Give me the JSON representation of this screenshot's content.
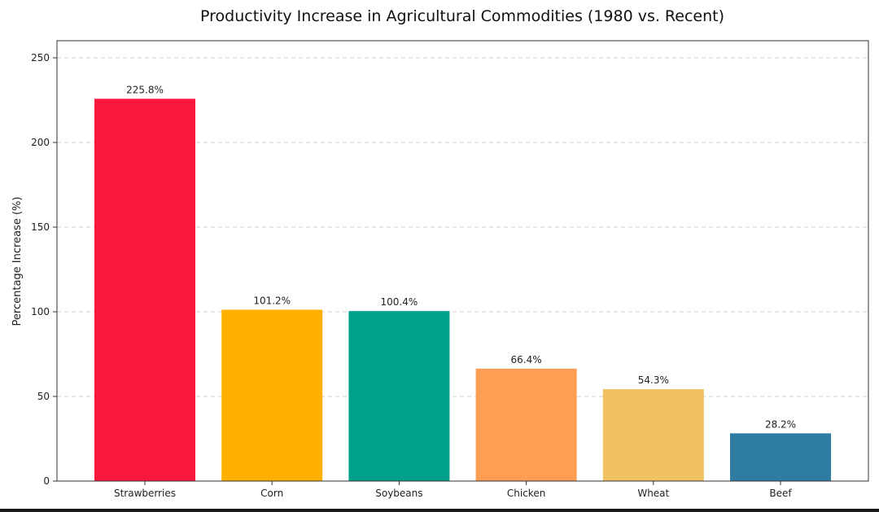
{
  "chart_data": {
    "type": "bar",
    "title": "Productivity Increase in Agricultural Commodities (1980 vs. Recent)",
    "xlabel": "",
    "ylabel": "Percentage Increase (%)",
    "categories": [
      "Strawberries",
      "Corn",
      "Soybeans",
      "Chicken",
      "Wheat",
      "Beef"
    ],
    "values": [
      225.8,
      101.2,
      100.4,
      66.4,
      54.3,
      28.2
    ],
    "value_labels": [
      "225.8%",
      "101.2%",
      "100.4%",
      "66.4%",
      "54.3%",
      "28.2%"
    ],
    "colors": [
      "#fb183d",
      "#ffb000",
      "#00a08a",
      "#fe9d54",
      "#f0c262",
      "#2f7ca3"
    ],
    "ylim": [
      0,
      250
    ],
    "yticks": [
      0,
      50,
      100,
      150,
      200,
      250
    ],
    "grid": "y-dashed",
    "legend": "none"
  }
}
